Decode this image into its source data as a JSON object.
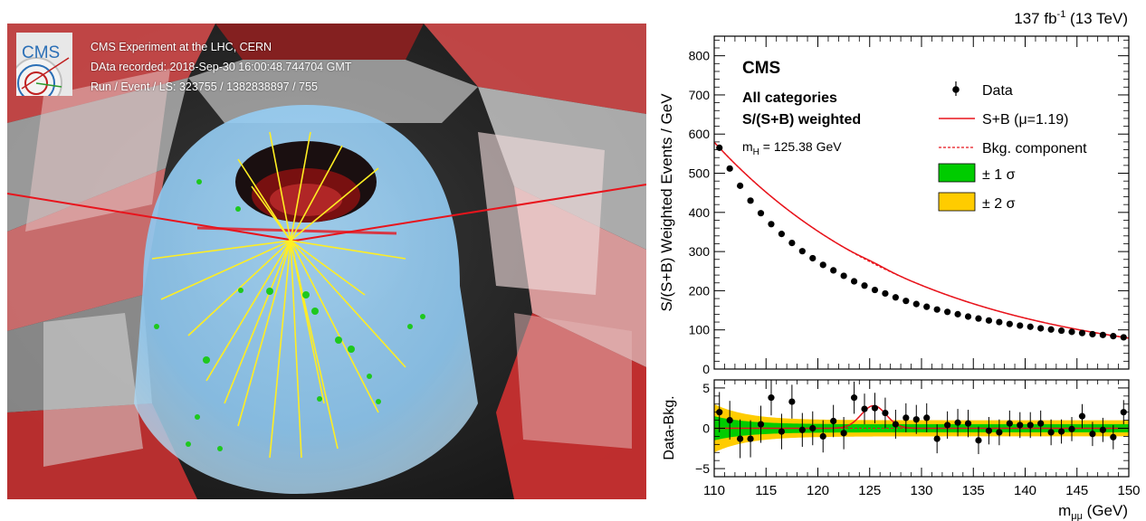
{
  "event_display": {
    "logo_text": "CMS",
    "line1": "CMS Experiment at the LHC, CERN",
    "line2": "DAta recorded: 2018-Sep-30 16:00:48.744704 GMT",
    "line3": "Run / Event / LS: 323755 / 1382838897 / 755",
    "icon": "cms-detector-logo"
  },
  "colors": {
    "fit": "#e8141c",
    "band1": "#00cc00",
    "band2": "#ffcc00",
    "data": "#000000",
    "detector_red": "#d82020",
    "detector_blue": "#8ec7ef",
    "track_yellow": "#ffee22"
  },
  "chart_data": {
    "type": "scatter",
    "lumi_label": "137 fb",
    "lumi_sup": "-1",
    "lumi_energy": "(13 TeV)",
    "experiment": "CMS",
    "category_line1": "All categories",
    "category_line2": "S/(S+B) weighted",
    "mass_label": "m",
    "mass_sub": "H",
    "mass_value": "= 125.38 GeV",
    "ylabel": "S/(S+B) Weighted Events / GeV",
    "ylabel_ratio": "Data-Bkg.",
    "xlabel_main": "m",
    "xlabel_sub": "μμ",
    "xlabel_unit": "(GeV)",
    "xlim": [
      110,
      150
    ],
    "ylim": [
      0,
      850
    ],
    "ylim_ratio": [
      -6,
      6
    ],
    "x_ticks": [
      110,
      115,
      120,
      125,
      130,
      135,
      140,
      145,
      150
    ],
    "y_ticks": [
      0,
      100,
      200,
      300,
      400,
      500,
      600,
      700,
      800
    ],
    "y_ticks_ratio": [
      -5,
      0,
      5
    ],
    "legend": {
      "data": "Data",
      "fit": "S+B (μ=1.19)",
      "bkg": "Bkg. component",
      "band1": "± 1 σ",
      "band2": "± 2 σ"
    },
    "x": [
      110.5,
      111.5,
      112.5,
      113.5,
      114.5,
      115.5,
      116.5,
      117.5,
      118.5,
      119.5,
      120.5,
      121.5,
      122.5,
      123.5,
      124.5,
      125.5,
      126.5,
      127.5,
      128.5,
      129.5,
      130.5,
      131.5,
      132.5,
      133.5,
      134.5,
      135.5,
      136.5,
      137.5,
      138.5,
      139.5,
      140.5,
      141.5,
      142.5,
      143.5,
      144.5,
      145.5,
      146.5,
      147.5,
      148.5,
      149.5
    ],
    "values": [
      565,
      512,
      468,
      430,
      398,
      370,
      345,
      322,
      301,
      283,
      266,
      252,
      238,
      224,
      213,
      202,
      193,
      183,
      174,
      166,
      159,
      152,
      146,
      140,
      134,
      129,
      124,
      120,
      115,
      111,
      108,
      104,
      101,
      98,
      95,
      92,
      89,
      87,
      84,
      81
    ],
    "residuals": [
      2.0,
      1.0,
      -1.3,
      -1.3,
      0.5,
      3.8,
      -0.4,
      3.3,
      -0.2,
      0.0,
      -1.0,
      0.9,
      -0.6,
      3.8,
      2.4,
      2.5,
      1.9,
      0.5,
      1.3,
      1.1,
      1.3,
      -1.3,
      0.4,
      0.7,
      0.6,
      -1.5,
      -0.3,
      -0.5,
      0.6,
      0.4,
      0.4,
      0.6,
      -0.5,
      -0.4,
      -0.1,
      1.5,
      -0.7,
      -0.2,
      -1.1,
      2.0
    ],
    "residual_errors": [
      2.5,
      2.4,
      2.4,
      2.3,
      2.3,
      2.2,
      2.2,
      2.1,
      2.1,
      2.1,
      2.0,
      2.0,
      2.0,
      2.0,
      1.9,
      1.9,
      1.9,
      1.8,
      1.8,
      1.8,
      1.8,
      1.8,
      1.7,
      1.7,
      1.7,
      1.7,
      1.7,
      1.6,
      1.6,
      1.6,
      1.6,
      1.6,
      1.6,
      1.5,
      1.5,
      1.5,
      1.5,
      1.5,
      1.5,
      1.5
    ]
  }
}
